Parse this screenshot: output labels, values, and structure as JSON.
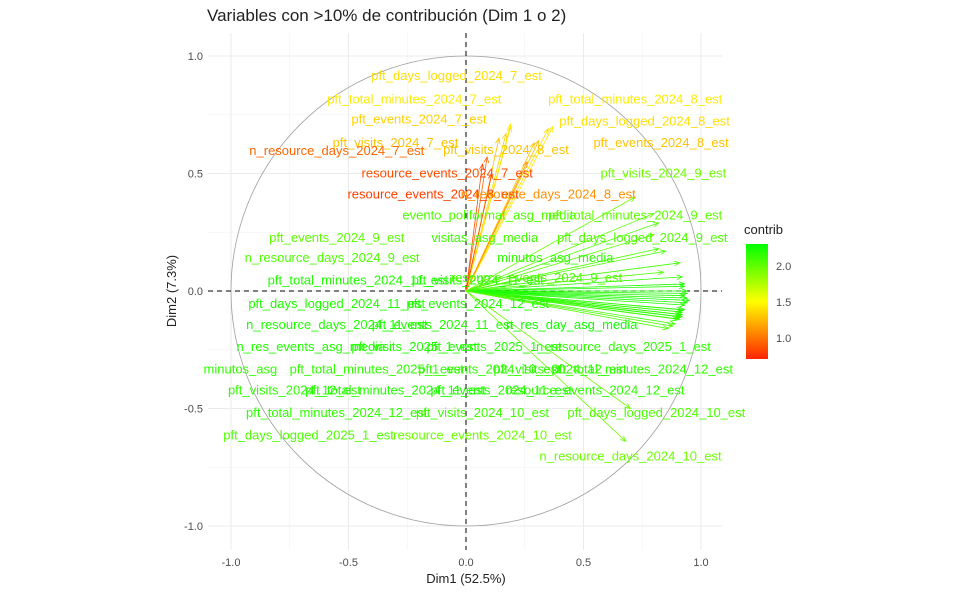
{
  "chart_data": {
    "type": "scatter",
    "title": "Variables con >10% de contribución (Dim 1 o 2)",
    "xlabel": "Dim1 (52.5%)",
    "ylabel": "Dim2 (7.3%)",
    "xlim": [
      -1.1,
      1.1
    ],
    "ylim": [
      -1.1,
      1.1
    ],
    "x_ticks": [
      "-1.0",
      "-0.5",
      "0.0",
      "0.5",
      "1.0"
    ],
    "y_ticks": [
      "-1.0",
      "-0.5",
      "0.0",
      "0.5",
      "1.0"
    ],
    "grid": true,
    "correlation_circle": true,
    "legend": {
      "title": "contrib",
      "position": "right",
      "min": 0.7,
      "max": 2.35,
      "ticks": [
        "2.0",
        "1.5",
        "1.0"
      ]
    },
    "variables": [
      {
        "name": "pft_days_logged_2024_7_est",
        "x": 0.19,
        "y": 0.7,
        "contrib": 1.4
      },
      {
        "name": "pft_total_minutes_2024_7_est",
        "x": 0.19,
        "y": 0.71,
        "contrib": 1.45
      },
      {
        "name": "pft_events_2024_7_est",
        "x": 0.17,
        "y": 0.67,
        "contrib": 1.35
      },
      {
        "name": "pft_visits_2024_7_est",
        "x": 0.14,
        "y": 0.65,
        "contrib": 1.3
      },
      {
        "name": "pft_visits_2024_8_est",
        "x": 0.29,
        "y": 0.63,
        "contrib": 1.3
      },
      {
        "name": "pft_total_minutes_2024_8_est",
        "x": 0.37,
        "y": 0.7,
        "contrib": 1.45
      },
      {
        "name": "pft_days_logged_2024_8_est",
        "x": 0.35,
        "y": 0.69,
        "contrib": 1.4
      },
      {
        "name": "pft_events_2024_8_est",
        "x": 0.31,
        "y": 0.64,
        "contrib": 1.3
      },
      {
        "name": "n_resource_days_2024_7_est",
        "x": 0.09,
        "y": 0.57,
        "contrib": 0.95
      },
      {
        "name": "resource_events_2024_7_est",
        "x": 0.07,
        "y": 0.54,
        "contrib": 0.85
      },
      {
        "name": "resource_events_2024_8_est",
        "x": 0.11,
        "y": 0.5,
        "contrib": 0.8
      },
      {
        "name": "n_resource_days_2024_8_est",
        "x": 0.26,
        "y": 0.55,
        "contrib": 1.1
      },
      {
        "name": "pft_visits_2024_9_est",
        "x": 0.72,
        "y": 0.4,
        "contrib": 2.0
      },
      {
        "name": "evento_poliformat_asg_media",
        "x": 0.85,
        "y": 0.17,
        "contrib": 2.1
      },
      {
        "name": "pft_total_minutes_2024_9_est",
        "x": 0.8,
        "y": 0.33,
        "contrib": 2.05
      },
      {
        "name": "visitas_asg_media",
        "x": 0.91,
        "y": 0.12,
        "contrib": 2.15
      },
      {
        "name": "pft_events_2024_9_est",
        "x": 0.8,
        "y": 0.24,
        "contrib": 2.05
      },
      {
        "name": "pft_days_logged_2024_9_est",
        "x": 0.82,
        "y": 0.29,
        "contrib": 2.1
      },
      {
        "name": "n_resource_days_2024_9_est",
        "x": 0.82,
        "y": 0.18,
        "contrib": 2.1
      },
      {
        "name": "minutos_asg_media",
        "x": 0.92,
        "y": 0.06,
        "contrib": 2.2
      },
      {
        "name": "pft_total_minutes_2024_11_est",
        "x": 0.93,
        "y": 0.03,
        "contrib": 2.25
      },
      {
        "name": "pft_visits_2024_11_est",
        "x": 0.93,
        "y": 0.02,
        "contrib": 2.25
      },
      {
        "name": "resource_events_2024_9_est",
        "x": 0.84,
        "y": 0.08,
        "contrib": 2.1
      },
      {
        "name": "pft_days_logged_2024_11_est",
        "x": 0.94,
        "y": 0.0,
        "contrib": 2.25
      },
      {
        "name": "pft_events_2024_12_est",
        "x": 0.94,
        "y": -0.01,
        "contrib": 2.25
      },
      {
        "name": "n_resource_days_2024_11_est",
        "x": 0.94,
        "y": -0.03,
        "contrib": 2.25
      },
      {
        "name": "pft_events_2024_11_est",
        "x": 0.93,
        "y": -0.02,
        "contrib": 2.25
      },
      {
        "name": "n_res_day_asg_media",
        "x": 0.95,
        "y": -0.04,
        "contrib": 2.3
      },
      {
        "name": "n_res_events_asg_media",
        "x": 0.94,
        "y": -0.05,
        "contrib": 2.25
      },
      {
        "name": "pft_visits_2025_1_est",
        "x": 0.93,
        "y": -0.06,
        "contrib": 2.25
      },
      {
        "name": "pft_events_2025_1_est",
        "x": 0.93,
        "y": -0.08,
        "contrib": 2.25
      },
      {
        "name": "n_resource_days_2025_1_est",
        "x": 0.92,
        "y": -0.08,
        "contrib": 2.2
      },
      {
        "name": "minutos_asg",
        "x": 0.92,
        "y": -0.09,
        "contrib": 2.2
      },
      {
        "name": "pft_total_minutes_2025_1_est",
        "x": 0.92,
        "y": -0.1,
        "contrib": 2.2
      },
      {
        "name": "pft_events_2024_10_est",
        "x": 0.92,
        "y": -0.11,
        "contrib": 2.2
      },
      {
        "name": "resource_events_2024_12_est",
        "x": 0.91,
        "y": -0.12,
        "contrib": 2.2
      },
      {
        "name": "pft_visits_2024_12_est",
        "x": 0.92,
        "y": -0.09,
        "contrib": 2.2
      },
      {
        "name": "pft_days_logged_2024_12_est",
        "x": 0.91,
        "y": -0.1,
        "contrib": 2.2
      },
      {
        "name": "pft_total_minutes_2024_12_est",
        "x": 0.91,
        "y": -0.11,
        "contrib": 2.2
      },
      {
        "name": "n_resource_days_2024_12_est",
        "x": 0.9,
        "y": -0.12,
        "contrib": 2.15
      },
      {
        "name": "pft_visits_2024_10_est",
        "x": 0.89,
        "y": -0.14,
        "contrib": 2.15
      },
      {
        "name": "pft_days_logged_2024_10_est",
        "x": 0.88,
        "y": -0.15,
        "contrib": 2.1
      },
      {
        "name": "pft_days_logged_2025_1_est",
        "x": 0.86,
        "y": -0.16,
        "contrib": 2.1
      },
      {
        "name": "resource_events_2024_10_est",
        "x": 0.7,
        "y": -0.5,
        "contrib": 2.0
      },
      {
        "name": "n_resource_days_2024_10_est",
        "x": 0.68,
        "y": -0.64,
        "contrib": 2.0
      }
    ],
    "labels": [
      {
        "text": "pft_days_logged_2024_7_est",
        "x": -0.04,
        "y": 0.92
      },
      {
        "text": "pft_total_minutes_2024_7_est",
        "x": -0.22,
        "y": 0.82
      },
      {
        "text": "pft_events_2024_7_est",
        "x": -0.2,
        "y": 0.735
      },
      {
        "text": "pft_visits_2024_7_est",
        "x": -0.3,
        "y": 0.635
      },
      {
        "text": "n_resource_days_2024_7_est",
        "x": -0.55,
        "y": 0.6
      },
      {
        "text": "pft_visits_2024_8_est",
        "x": 0.17,
        "y": 0.605
      },
      {
        "text": "resource_events_2024_7_est",
        "x": -0.08,
        "y": 0.505
      },
      {
        "text": "resource_events_2024_8_est",
        "x": -0.14,
        "y": 0.415
      },
      {
        "text": "n_resource_days_2024_8_est",
        "x": 0.35,
        "y": 0.415
      },
      {
        "text": "pft_total_minutes_2024_8_est",
        "x": 0.72,
        "y": 0.82
      },
      {
        "text": "pft_days_logged_2024_8_est",
        "x": 0.76,
        "y": 0.725
      },
      {
        "text": "pft_events_2024_8_est",
        "x": 0.83,
        "y": 0.635
      },
      {
        "text": "pft_visits_2024_9_est",
        "x": 0.84,
        "y": 0.505
      },
      {
        "text": "evento_poliformat_asg_media",
        "x": 0.1,
        "y": 0.325
      },
      {
        "text": "pft_total_minutes_2024_9_est",
        "x": 0.72,
        "y": 0.325
      },
      {
        "text": "visitas_asg_media",
        "x": 0.08,
        "y": 0.23
      },
      {
        "text": "pft_events_2024_9_est",
        "x": -0.55,
        "y": 0.23
      },
      {
        "text": "pft_days_logged_2024_9_est",
        "x": 0.75,
        "y": 0.23
      },
      {
        "text": "n_resource_days_2024_9_est",
        "x": -0.57,
        "y": 0.145
      },
      {
        "text": "minutos_asg_media",
        "x": 0.38,
        "y": 0.145
      },
      {
        "text": "pft_total_minutes_2024_11_est",
        "x": -0.46,
        "y": 0.05
      },
      {
        "text": "pft_visits_2024_11_est",
        "x": 0.05,
        "y": 0.05
      },
      {
        "text": "resource_events_2024_9_est",
        "x": 0.3,
        "y": 0.06
      },
      {
        "text": "pft_days_logged_2024_11_est",
        "x": -0.55,
        "y": -0.05
      },
      {
        "text": "pft_events_2024_12_est",
        "x": 0.05,
        "y": -0.05
      },
      {
        "text": "n_resource_days_2024_11_est",
        "x": -0.55,
        "y": -0.14
      },
      {
        "text": "pft_events_2024_11_est",
        "x": -0.1,
        "y": -0.14
      },
      {
        "text": "n_res_day_asg_media",
        "x": 0.45,
        "y": -0.14
      },
      {
        "text": "n_res_events_asg_media",
        "x": -0.66,
        "y": -0.235
      },
      {
        "text": "pft_visits_2025_1_est",
        "x": -0.22,
        "y": -0.235
      },
      {
        "text": "pft_events_2025_1_est",
        "x": 0.12,
        "y": -0.235
      },
      {
        "text": "n_resource_days_2025_1_est",
        "x": 0.67,
        "y": -0.235
      },
      {
        "text": "minutos_asg",
        "x": -0.96,
        "y": -0.33
      },
      {
        "text": "pft_total_minutes_2025_1_est",
        "x": -0.38,
        "y": -0.33
      },
      {
        "text": "pft_events_2024_10_est",
        "x": 0.1,
        "y": -0.33
      },
      {
        "text": "pft_visits_2024_12_est",
        "x": 0.4,
        "y": -0.33
      },
      {
        "text": "pft_total_minutes_2024_12_est",
        "x": 0.75,
        "y": -0.33
      },
      {
        "text": "pft_visits_2024_12_est",
        "x": -0.73,
        "y": -0.42
      },
      {
        "text": "pft_total_minutes_2024_11_est",
        "x": -0.3,
        "y": -0.42
      },
      {
        "text": "pft_events_2024_11_est",
        "x": 0.15,
        "y": -0.42
      },
      {
        "text": "resource_events_2024_12_est",
        "x": 0.55,
        "y": -0.42
      },
      {
        "text": "pft_total_minutes_2024_12_est",
        "x": -0.55,
        "y": -0.515
      },
      {
        "text": "pft_visits_2024_10_est",
        "x": 0.07,
        "y": -0.515
      },
      {
        "text": "pft_days_logged_2024_10_est",
        "x": 0.81,
        "y": -0.515
      },
      {
        "text": "pft_days_logged_2025_1_est",
        "x": -0.67,
        "y": -0.61
      },
      {
        "text": "resource_events_2024_10_est",
        "x": 0.07,
        "y": -0.61
      },
      {
        "text": "n_resource_days_2024_10_est",
        "x": 0.7,
        "y": -0.7
      }
    ]
  }
}
